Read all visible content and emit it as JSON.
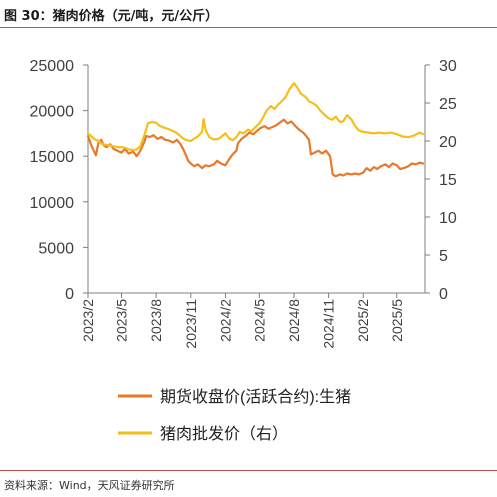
{
  "figure": {
    "title": "图 30：猪肉价格（元/吨，元/公斤）",
    "source": "资料来源：Wind，天风证券研究所"
  },
  "chart_data": {
    "type": "line",
    "x_ticks": [
      "2023/2",
      "2023/5",
      "2023/8",
      "2023/11",
      "2024/2",
      "2024/5",
      "2024/8",
      "2024/11",
      "2025/2",
      "2025/5"
    ],
    "x_range": [
      "2023-02-01",
      "2025-07-15"
    ],
    "y_left": {
      "ylim": [
        0,
        25000
      ],
      "ticks": [
        0,
        5000,
        10000,
        15000,
        20000,
        25000
      ]
    },
    "y_right": {
      "ylim": [
        0,
        30
      ],
      "ticks": [
        0,
        5,
        10,
        15,
        20,
        25,
        30
      ]
    },
    "grid": false,
    "legend_position": "bottom",
    "series": [
      {
        "name": "期货收盘价(活跃合约):生猪",
        "axis": "left",
        "color": "#e8792a",
        "points": [
          [
            "2023-02-01",
            17200
          ],
          [
            "2023-02-08",
            16400
          ],
          [
            "2023-02-15",
            15700
          ],
          [
            "2023-02-22",
            15100
          ],
          [
            "2023-03-01",
            16500
          ],
          [
            "2023-03-08",
            16800
          ],
          [
            "2023-03-15",
            16200
          ],
          [
            "2023-03-22",
            16000
          ],
          [
            "2023-04-01",
            16300
          ],
          [
            "2023-04-10",
            15800
          ],
          [
            "2023-04-20",
            15600
          ],
          [
            "2023-05-01",
            15400
          ],
          [
            "2023-05-10",
            15800
          ],
          [
            "2023-05-20",
            15300
          ],
          [
            "2023-06-01",
            15500
          ],
          [
            "2023-06-10",
            15000
          ],
          [
            "2023-06-20",
            15600
          ],
          [
            "2023-07-01",
            16600
          ],
          [
            "2023-07-05",
            17200
          ],
          [
            "2023-07-15",
            17100
          ],
          [
            "2023-07-25",
            17300
          ],
          [
            "2023-08-05",
            16900
          ],
          [
            "2023-08-15",
            17100
          ],
          [
            "2023-08-25",
            16800
          ],
          [
            "2023-09-05",
            16700
          ],
          [
            "2023-09-15",
            16500
          ],
          [
            "2023-09-25",
            16800
          ],
          [
            "2023-10-05",
            16300
          ],
          [
            "2023-10-15",
            15500
          ],
          [
            "2023-10-25",
            14500
          ],
          [
            "2023-11-01",
            14200
          ],
          [
            "2023-11-10",
            13900
          ],
          [
            "2023-11-20",
            14100
          ],
          [
            "2023-12-01",
            13700
          ],
          [
            "2023-12-10",
            14000
          ],
          [
            "2023-12-20",
            13900
          ],
          [
            "2024-01-01",
            14100
          ],
          [
            "2024-01-10",
            14500
          ],
          [
            "2024-01-20",
            14200
          ],
          [
            "2024-02-01",
            14000
          ],
          [
            "2024-02-10",
            14600
          ],
          [
            "2024-02-20",
            15200
          ],
          [
            "2024-03-01",
            15600
          ],
          [
            "2024-03-05",
            16400
          ],
          [
            "2024-03-15",
            16900
          ],
          [
            "2024-03-25",
            17200
          ],
          [
            "2024-04-05",
            17600
          ],
          [
            "2024-04-15",
            17400
          ],
          [
            "2024-04-25",
            17800
          ],
          [
            "2024-05-05",
            18100
          ],
          [
            "2024-05-15",
            18300
          ],
          [
            "2024-05-25",
            18000
          ],
          [
            "2024-06-05",
            18200
          ],
          [
            "2024-06-15",
            18400
          ],
          [
            "2024-06-25",
            18700
          ],
          [
            "2024-07-05",
            19000
          ],
          [
            "2024-07-15",
            18600
          ],
          [
            "2024-07-25",
            18800
          ],
          [
            "2024-08-05",
            18300
          ],
          [
            "2024-08-15",
            17900
          ],
          [
            "2024-08-25",
            17600
          ],
          [
            "2024-09-01",
            17300
          ],
          [
            "2024-09-10",
            16800
          ],
          [
            "2024-09-15",
            15200
          ],
          [
            "2024-09-25",
            15400
          ],
          [
            "2024-10-05",
            15600
          ],
          [
            "2024-10-15",
            15300
          ],
          [
            "2024-10-25",
            15600
          ],
          [
            "2024-11-05",
            15000
          ],
          [
            "2024-11-12",
            13000
          ],
          [
            "2024-11-20",
            12800
          ],
          [
            "2024-12-01",
            13000
          ],
          [
            "2024-12-10",
            12900
          ],
          [
            "2024-12-20",
            13100
          ],
          [
            "2025-01-01",
            13000
          ],
          [
            "2025-01-10",
            13100
          ],
          [
            "2025-01-20",
            13000
          ],
          [
            "2025-02-01",
            13200
          ],
          [
            "2025-02-10",
            13700
          ],
          [
            "2025-02-20",
            13400
          ],
          [
            "2025-03-01",
            13800
          ],
          [
            "2025-03-10",
            13600
          ],
          [
            "2025-03-20",
            13900
          ],
          [
            "2025-04-01",
            14100
          ],
          [
            "2025-04-10",
            13800
          ],
          [
            "2025-04-20",
            14200
          ],
          [
            "2025-05-01",
            14000
          ],
          [
            "2025-05-10",
            13600
          ],
          [
            "2025-05-20",
            13700
          ],
          [
            "2025-06-01",
            13900
          ],
          [
            "2025-06-10",
            14200
          ],
          [
            "2025-06-20",
            14100
          ],
          [
            "2025-07-01",
            14300
          ],
          [
            "2025-07-10",
            14200
          ]
        ]
      },
      {
        "name": "猪肉批发价（右）",
        "axis": "right",
        "color": "#f5bf1b",
        "points": [
          [
            "2023-02-01",
            21.0
          ],
          [
            "2023-02-10",
            20.6
          ],
          [
            "2023-02-20",
            20.2
          ],
          [
            "2023-03-01",
            20.0
          ],
          [
            "2023-03-10",
            19.6
          ],
          [
            "2023-03-20",
            19.5
          ],
          [
            "2023-04-01",
            19.4
          ],
          [
            "2023-04-10",
            19.3
          ],
          [
            "2023-04-20",
            19.2
          ],
          [
            "2023-05-01",
            19.2
          ],
          [
            "2023-05-10",
            19.1
          ],
          [
            "2023-05-20",
            18.9
          ],
          [
            "2023-06-01",
            18.8
          ],
          [
            "2023-06-10",
            18.9
          ],
          [
            "2023-06-20",
            19.3
          ],
          [
            "2023-07-01",
            20.8
          ],
          [
            "2023-07-10",
            22.3
          ],
          [
            "2023-07-20",
            22.5
          ],
          [
            "2023-08-01",
            22.4
          ],
          [
            "2023-08-10",
            22.0
          ],
          [
            "2023-08-20",
            21.8
          ],
          [
            "2023-09-01",
            21.6
          ],
          [
            "2023-09-10",
            21.4
          ],
          [
            "2023-09-20",
            21.2
          ],
          [
            "2023-10-01",
            20.8
          ],
          [
            "2023-10-10",
            20.4
          ],
          [
            "2023-10-20",
            20.1
          ],
          [
            "2023-11-01",
            20.0
          ],
          [
            "2023-11-10",
            20.3
          ],
          [
            "2023-11-20",
            20.6
          ],
          [
            "2023-12-01",
            21.2
          ],
          [
            "2023-12-05",
            22.9
          ],
          [
            "2023-12-10",
            21.5
          ],
          [
            "2023-12-20",
            20.5
          ],
          [
            "2024-01-01",
            20.2
          ],
          [
            "2024-01-15",
            20.3
          ],
          [
            "2024-02-01",
            21.0
          ],
          [
            "2024-02-10",
            20.4
          ],
          [
            "2024-02-20",
            20.1
          ],
          [
            "2024-03-01",
            20.5
          ],
          [
            "2024-03-10",
            21.2
          ],
          [
            "2024-03-20",
            21.0
          ],
          [
            "2024-04-01",
            21.5
          ],
          [
            "2024-04-10",
            21.3
          ],
          [
            "2024-04-20",
            21.8
          ],
          [
            "2024-05-01",
            22.3
          ],
          [
            "2024-05-10",
            23.0
          ],
          [
            "2024-05-20",
            24.0
          ],
          [
            "2024-06-01",
            24.6
          ],
          [
            "2024-06-10",
            24.2
          ],
          [
            "2024-06-20",
            24.8
          ],
          [
            "2024-07-01",
            25.3
          ],
          [
            "2024-07-10",
            25.8
          ],
          [
            "2024-07-20",
            26.8
          ],
          [
            "2024-08-01",
            27.6
          ],
          [
            "2024-08-10",
            27.0
          ],
          [
            "2024-08-20",
            26.2
          ],
          [
            "2024-09-01",
            25.8
          ],
          [
            "2024-09-10",
            25.2
          ],
          [
            "2024-09-20",
            25.0
          ],
          [
            "2024-10-01",
            24.6
          ],
          [
            "2024-10-10",
            24.0
          ],
          [
            "2024-10-20",
            23.5
          ],
          [
            "2024-11-01",
            23.0
          ],
          [
            "2024-11-10",
            22.8
          ],
          [
            "2024-11-20",
            23.2
          ],
          [
            "2024-12-01",
            22.5
          ],
          [
            "2024-12-10",
            22.6
          ],
          [
            "2024-12-20",
            23.4
          ],
          [
            "2025-01-01",
            22.8
          ],
          [
            "2025-01-10",
            22.0
          ],
          [
            "2025-01-20",
            21.4
          ],
          [
            "2025-02-01",
            21.2
          ],
          [
            "2025-02-15",
            21.1
          ],
          [
            "2025-03-01",
            21.0
          ],
          [
            "2025-03-15",
            21.1
          ],
          [
            "2025-04-01",
            21.0
          ],
          [
            "2025-04-15",
            21.1
          ],
          [
            "2025-05-01",
            20.9
          ],
          [
            "2025-05-15",
            20.6
          ],
          [
            "2025-06-01",
            20.5
          ],
          [
            "2025-06-15",
            20.7
          ],
          [
            "2025-07-01",
            21.1
          ],
          [
            "2025-07-10",
            20.9
          ]
        ]
      }
    ]
  }
}
